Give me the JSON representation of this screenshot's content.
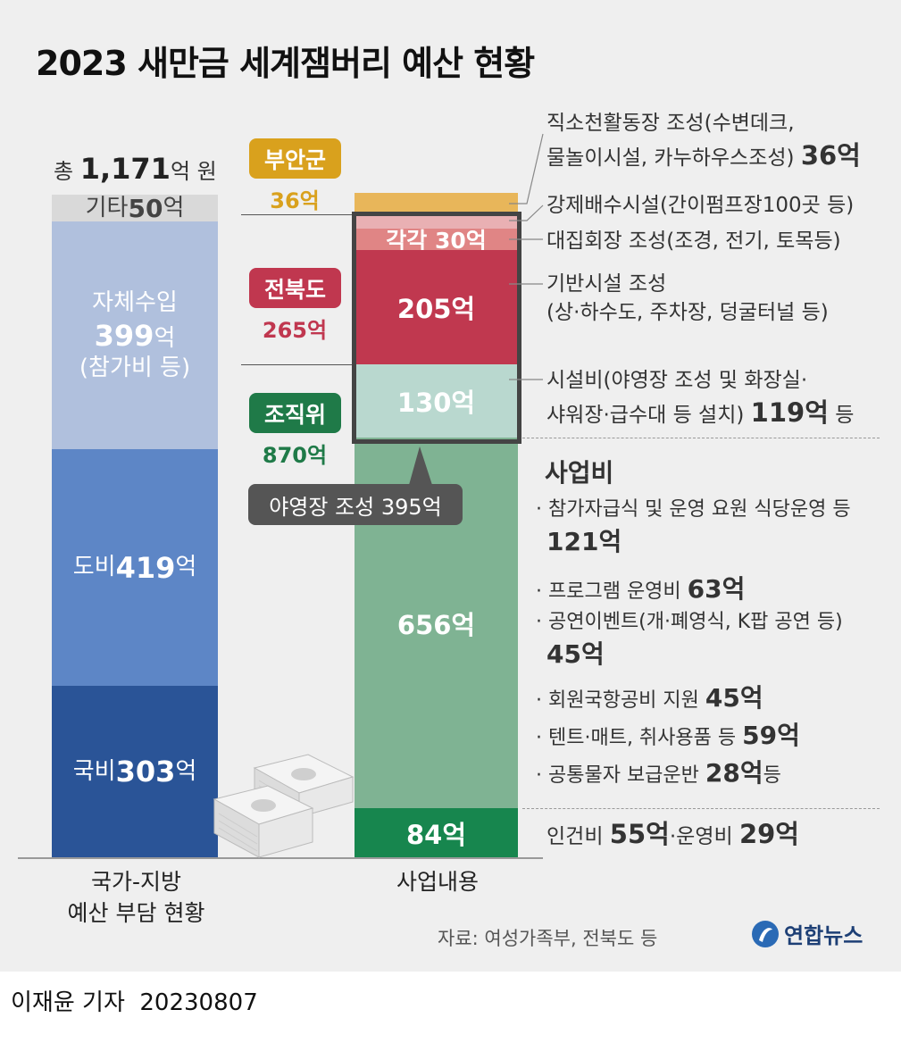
{
  "title": "2023 새만금 세계잼버리 예산 현황",
  "total": {
    "prefix": "총 ",
    "value": "1,171",
    "unit": "억 원"
  },
  "chart_data": [
    {
      "type": "bar",
      "name": "",
      "categories": [
        "국비",
        "도비",
        "자체수입",
        "기타"
      ],
      "values": [
        303,
        419,
        399,
        50
      ],
      "unit": "억",
      "xlabel": "국가-지방 예산 부담 현황",
      "sublabels": {
        "자체수입": "(참가비 등)"
      }
    },
    {
      "type": "bar",
      "name": "",
      "categories": [
        "인건비·운영비",
        "사업비",
        "시설비",
        "기반시설 조성",
        "대집회장 조성",
        "강제배수시설",
        "직소천 활동장 조성"
      ],
      "values": [
        84,
        656,
        130,
        205,
        30,
        30,
        36
      ],
      "unit": "억",
      "xlabel": "사업내용",
      "funders": [
        {
          "name": "부안군",
          "value": "36억",
          "color": "#d9a11d"
        },
        {
          "name": "전북도",
          "value": "265억",
          "color": "#c0374f"
        },
        {
          "name": "조직위",
          "value": "870억",
          "color": "#1f7a48"
        }
      ],
      "campsite_callout": "야영장 조성 395억",
      "each_label": "각각 30억"
    }
  ],
  "left_segments": {
    "gukbi": {
      "label": "국비 ",
      "value": "303",
      "unit": "억"
    },
    "dobi": {
      "label": "도비 ",
      "value": "419",
      "unit": "억"
    },
    "jache": {
      "label": "자체수입",
      "value": "399",
      "unit": "억",
      "note": "(참가비 등)"
    },
    "gita": {
      "label": "기타 ",
      "value": "50",
      "unit": "억"
    }
  },
  "right_labels": {
    "r84": "84억",
    "r656": "656억",
    "r130": "130억",
    "r205": "205억",
    "r30": "각각 30억"
  },
  "descriptions": {
    "d1_line1": "직소천활동장 조성(수변데크,",
    "d1_line2": "물놀이시설, 카누하우스조성)",
    "d1_val": "36억",
    "d2": "강제배수시설(간이펌프장100곳 등)",
    "d3": "대집회장 조성(조경, 전기, 토목등)",
    "d4_line1": "기반시설 조성",
    "d4_line2": "(상·하수도, 주차장, 덩굴터널 등)",
    "d5_line1": "시설비(야영장 조성 및 화장실·",
    "d5_line2": "샤워장·급수대 등 설치)",
    "d5_val": "119억",
    "d5_suffix": " 등",
    "biz_title": "사업비",
    "b1_text": "· 참가자급식 및 운영 요원 식당운영 등",
    "b1_val": "121억",
    "b2_text": "· 프로그램 운영비 ",
    "b2_val": "63억",
    "b3_text": "· 공연이벤트(개·폐영식, K팝 공연 등)",
    "b3_val": "45억",
    "b4_text": "· 회원국항공비 지원 ",
    "b4_val": "45억",
    "b5_text": "· 텐트·매트, 취사용품 등 ",
    "b5_val": "59억",
    "b6_text": "· 공통물자 보급운반 ",
    "b6_val": "28억",
    "b6_suffix": "등",
    "d_last_a": "인건비 ",
    "d_last_v1": "55억",
    "d_last_b": "·운영비 ",
    "d_last_v2": "29억"
  },
  "axis_left_line1": "국가-지방",
  "axis_left_line2": "예산 부담 현황",
  "axis_right": "사업내용",
  "source": "자료: 여성가족부, 전북도 등",
  "logo_text": "연합뉴스",
  "byline": "이재윤 기자  20230807",
  "colors": {
    "gukbi": "#2a5497",
    "dobi": "#5d86c6",
    "jache": "#b0c0dd",
    "gita": "#d9d9d9",
    "buan": "#e8b65a",
    "jeonbuk_light": "#e08585",
    "jeonbuk": "#c0384f",
    "facility": "#b9d8cf",
    "org": "#7fb393",
    "org_dark": "#17864e"
  }
}
